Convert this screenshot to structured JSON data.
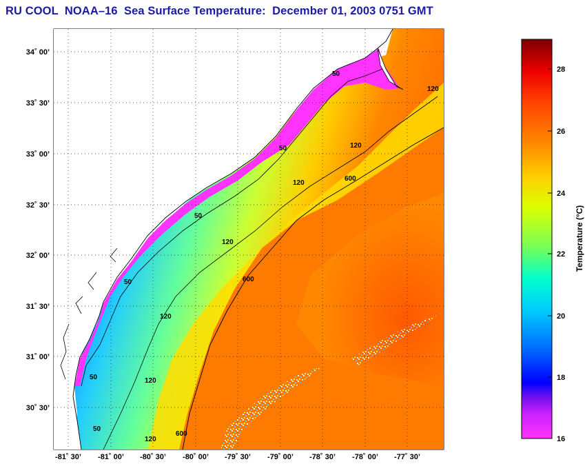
{
  "title": "RU COOL  NOAA–16  Sea Surface Temperature:  December 01, 2003 0751 GMT",
  "map": {
    "lat_labels": [
      "34˚ 00’",
      "33˚ 30’",
      "33˚ 00’",
      "32˚ 30’",
      "32˚ 00’",
      "31˚ 30’",
      "31˚ 00’",
      "30˚ 30’"
    ],
    "lon_labels": [
      "-81˚ 30’",
      "-81˚ 00’",
      "-80˚ 30’",
      "-80˚ 00’",
      "-79˚ 30’",
      "-79˚ 00’",
      "-78˚ 30’",
      "-78˚ 00’",
      "-77˚ 30’"
    ],
    "contour_labels": [
      {
        "text": "50"
      },
      {
        "text": "50"
      },
      {
        "text": "50"
      },
      {
        "text": "50"
      },
      {
        "text": "50"
      },
      {
        "text": "50"
      },
      {
        "text": "120"
      },
      {
        "text": "120"
      },
      {
        "text": "120"
      },
      {
        "text": "120"
      },
      {
        "text": "120"
      },
      {
        "text": "120"
      },
      {
        "text": "120"
      },
      {
        "text": "600"
      },
      {
        "text": "600"
      },
      {
        "text": "600"
      }
    ]
  },
  "colorbar": {
    "title": "Temperature (°C)",
    "ticks": [
      "28",
      "26",
      "24",
      "22",
      "20",
      "18",
      "16"
    ],
    "colors": {
      "t16": "#ff33ff",
      "t17": "#9900ff",
      "t18": "#0000ff",
      "t19": "#0077ff",
      "t20": "#00ccff",
      "t21": "#00ffdd",
      "t22": "#55ff77",
      "t23": "#aaff22",
      "t24": "#ffff00",
      "t25": "#ffbb00",
      "t26": "#ff7700",
      "t27": "#ff3300",
      "t28": "#ee0000",
      "t29": "#880000"
    }
  }
}
